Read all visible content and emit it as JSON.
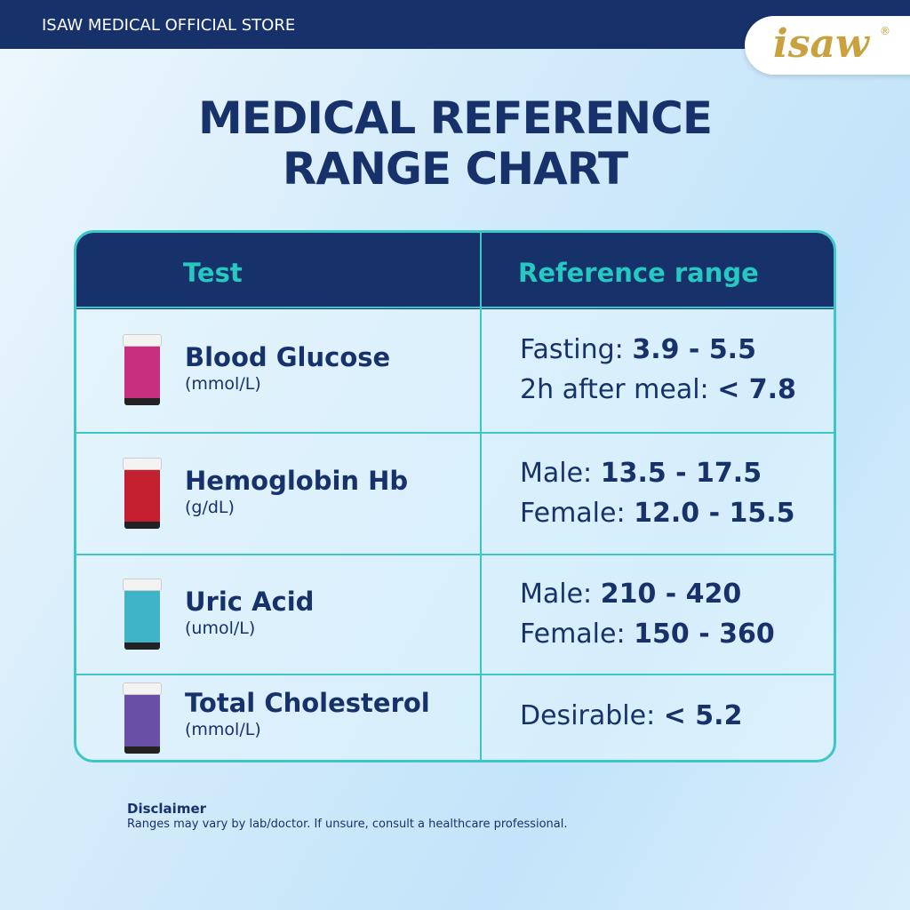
{
  "header": {
    "store_name": "ISAW MEDICAL OFFICIAL STORE",
    "logo_text": "isaw",
    "logo_mark": "®"
  },
  "title_line1": "MEDICAL REFERENCE",
  "title_line2": "RANGE CHART",
  "table": {
    "columns": [
      "Test",
      "Reference range"
    ],
    "rows": [
      {
        "test": "Blood Glucose",
        "unit": "(mmol/L)",
        "bottle_color": "#c8307f",
        "ranges": [
          {
            "label": "Fasting: ",
            "value": "3.9 - 5.5"
          },
          {
            "label": "2h after meal: ",
            "value": "< 7.8"
          }
        ]
      },
      {
        "test": "Hemoglobin Hb",
        "unit": "(g/dL)",
        "bottle_color": "#c42030",
        "ranges": [
          {
            "label": "Male: ",
            "value": "13.5 - 17.5"
          },
          {
            "label": "Female: ",
            "value": "12.0 - 15.5"
          }
        ]
      },
      {
        "test": "Uric Acid",
        "unit": "(umol/L)",
        "bottle_color": "#3fb3c8",
        "ranges": [
          {
            "label": "Male: ",
            "value": "210 - 420"
          },
          {
            "label": "Female: ",
            "value": "150 - 360"
          }
        ]
      },
      {
        "test": "Total Cholesterol",
        "unit": "(mmol/L)",
        "bottle_color": "#6a4fa6",
        "ranges": [
          {
            "label": "Desirable: ",
            "value": "< 5.2"
          }
        ]
      }
    ]
  },
  "disclaimer": {
    "heading": "Disclaimer",
    "text": "Ranges may vary by lab/doctor. If unsure, consult a healthcare professional."
  }
}
